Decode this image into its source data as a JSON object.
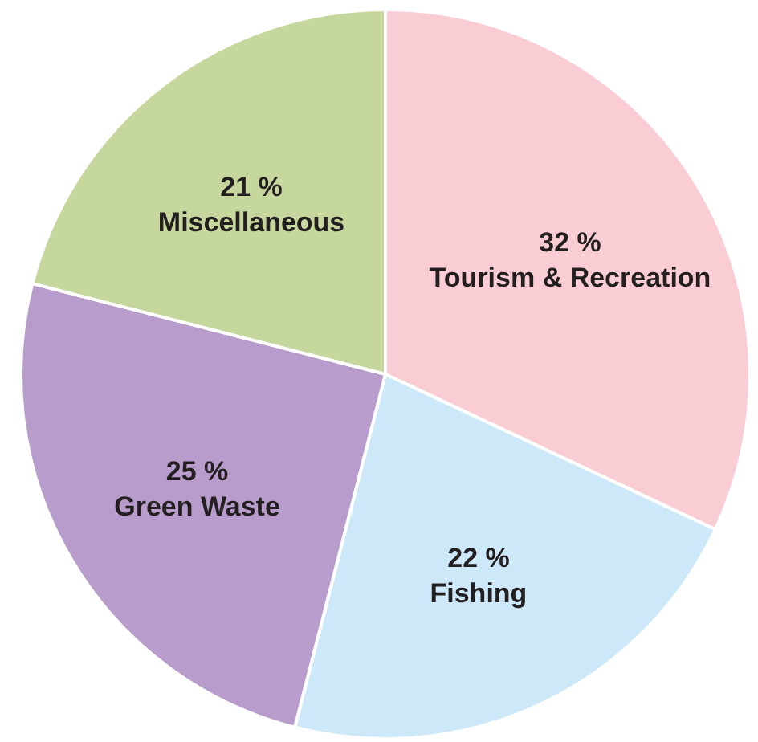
{
  "chart_data": {
    "type": "pie",
    "categories": [
      "Tourism & Recreation",
      "Fishing",
      "Green Waste",
      "Miscellaneous"
    ],
    "values": [
      32,
      22,
      25,
      21
    ],
    "colors": [
      "#f9cdd3",
      "#cde9f9",
      "#b89ccb",
      "#c6d79e"
    ],
    "value_labels": [
      "32 %",
      "22 %",
      "25 %",
      "21 %"
    ]
  }
}
